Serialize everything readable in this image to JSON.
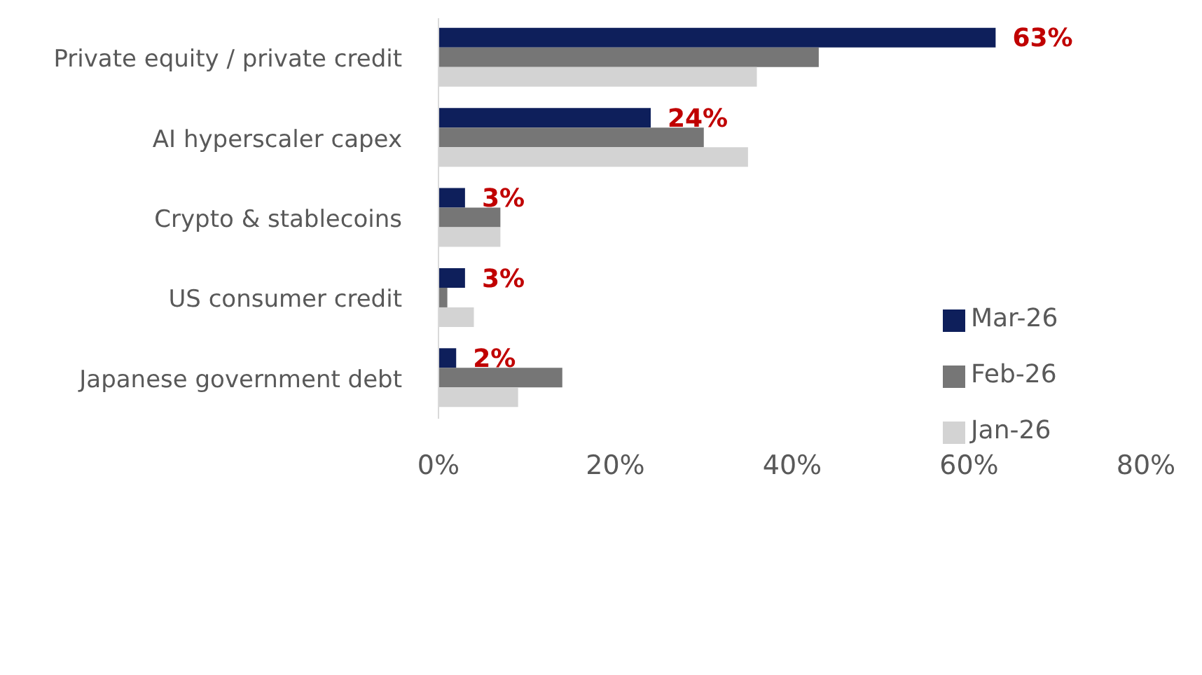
{
  "chart_data": {
    "type": "bar",
    "orientation": "horizontal",
    "categories": [
      "Private equity / private credit",
      "AI hyperscaler capex",
      "Crypto & stablecoins",
      "US consumer credit",
      "Japanese government debt"
    ],
    "series": [
      {
        "name": "Mar-26",
        "color": "#0e1f5b",
        "values": [
          63,
          24,
          3,
          3,
          2
        ],
        "value_labels": [
          "63%",
          "24%",
          "3%",
          "3%",
          "2%"
        ]
      },
      {
        "name": "Feb-26",
        "color": "#767676",
        "values": [
          43,
          30,
          7,
          1,
          14
        ]
      },
      {
        "name": "Jan-26",
        "color": "#d3d3d3",
        "values": [
          36,
          35,
          7,
          4,
          9
        ]
      }
    ],
    "xlim": [
      0,
      80
    ],
    "xticks": [
      {
        "value": 0,
        "label": "0%"
      },
      {
        "value": 20,
        "label": "20%"
      },
      {
        "value": 40,
        "label": "40%"
      },
      {
        "value": 60,
        "label": "60%"
      },
      {
        "value": 80,
        "label": "80%"
      }
    ],
    "grid": false,
    "legend": "right"
  }
}
